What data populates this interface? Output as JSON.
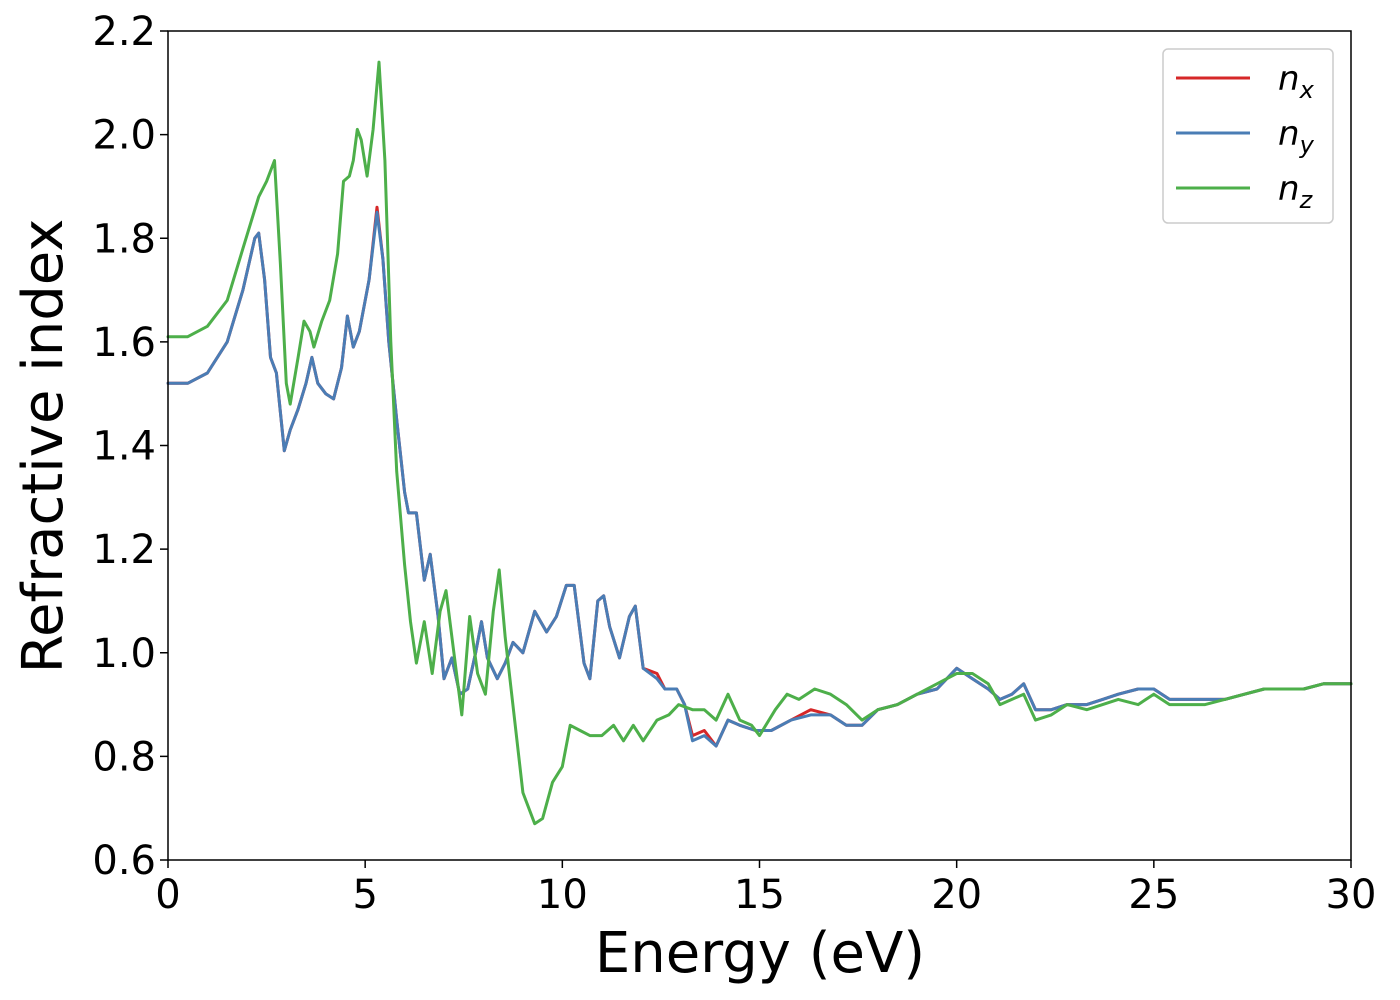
{
  "chart_data": {
    "type": "line",
    "title": "",
    "xlabel": "Energy (eV)",
    "ylabel": "Refractive index",
    "xlim": [
      0,
      30
    ],
    "ylim": [
      0.6,
      2.2
    ],
    "xticks": [
      0,
      5,
      10,
      15,
      20,
      25,
      30
    ],
    "yticks": [
      0.6,
      0.8,
      1.0,
      1.2,
      1.4,
      1.6,
      1.8,
      2.0,
      2.2
    ],
    "xtick_labels": [
      "0",
      "5",
      "10",
      "15",
      "20",
      "25",
      "30"
    ],
    "ytick_labels": [
      "0.6",
      "0.8",
      "1.0",
      "1.2",
      "1.4",
      "1.6",
      "1.8",
      "2.0",
      "2.2"
    ],
    "grid": false,
    "legend_position": "top-right",
    "series": [
      {
        "name": "n_x",
        "legend_base": "n",
        "legend_sub": "x",
        "color": "#d62728",
        "points": [
          [
            0,
            1.52
          ],
          [
            0.5,
            1.52
          ],
          [
            1.0,
            1.54
          ],
          [
            1.5,
            1.6
          ],
          [
            1.9,
            1.7
          ],
          [
            2.2,
            1.8
          ],
          [
            2.3,
            1.81
          ],
          [
            2.45,
            1.72
          ],
          [
            2.6,
            1.57
          ],
          [
            2.75,
            1.54
          ],
          [
            2.95,
            1.39
          ],
          [
            3.1,
            1.43
          ],
          [
            3.3,
            1.47
          ],
          [
            3.5,
            1.52
          ],
          [
            3.65,
            1.57
          ],
          [
            3.8,
            1.52
          ],
          [
            4.0,
            1.5
          ],
          [
            4.2,
            1.49
          ],
          [
            4.4,
            1.55
          ],
          [
            4.55,
            1.65
          ],
          [
            4.7,
            1.59
          ],
          [
            4.85,
            1.62
          ],
          [
            5.0,
            1.68
          ],
          [
            5.1,
            1.72
          ],
          [
            5.3,
            1.86
          ],
          [
            5.45,
            1.76
          ],
          [
            5.6,
            1.6
          ],
          [
            5.8,
            1.45
          ],
          [
            6.0,
            1.31
          ],
          [
            6.1,
            1.27
          ],
          [
            6.3,
            1.27
          ],
          [
            6.5,
            1.14
          ],
          [
            6.65,
            1.19
          ],
          [
            6.85,
            1.07
          ],
          [
            7.0,
            0.95
          ],
          [
            7.2,
            0.99
          ],
          [
            7.4,
            0.92
          ],
          [
            7.6,
            0.93
          ],
          [
            7.8,
            1.0
          ],
          [
            7.95,
            1.06
          ],
          [
            8.1,
            0.99
          ],
          [
            8.35,
            0.95
          ],
          [
            8.55,
            0.98
          ],
          [
            8.75,
            1.02
          ],
          [
            9.0,
            1.0
          ],
          [
            9.3,
            1.08
          ],
          [
            9.6,
            1.04
          ],
          [
            9.85,
            1.07
          ],
          [
            10.1,
            1.13
          ],
          [
            10.3,
            1.13
          ],
          [
            10.55,
            0.98
          ],
          [
            10.7,
            0.95
          ],
          [
            10.9,
            1.1
          ],
          [
            11.05,
            1.11
          ],
          [
            11.2,
            1.05
          ],
          [
            11.45,
            0.99
          ],
          [
            11.7,
            1.07
          ],
          [
            11.85,
            1.09
          ],
          [
            12.05,
            0.97
          ],
          [
            12.4,
            0.96
          ],
          [
            12.6,
            0.93
          ],
          [
            12.9,
            0.93
          ],
          [
            13.1,
            0.9
          ],
          [
            13.3,
            0.84
          ],
          [
            13.6,
            0.85
          ],
          [
            13.9,
            0.82
          ],
          [
            14.2,
            0.87
          ],
          [
            14.5,
            0.86
          ],
          [
            14.9,
            0.85
          ],
          [
            15.3,
            0.85
          ],
          [
            15.8,
            0.87
          ],
          [
            16.3,
            0.89
          ],
          [
            16.8,
            0.88
          ],
          [
            17.2,
            0.86
          ],
          [
            17.6,
            0.86
          ],
          [
            18.0,
            0.89
          ],
          [
            18.5,
            0.9
          ],
          [
            19.0,
            0.92
          ],
          [
            19.5,
            0.93
          ],
          [
            20.0,
            0.97
          ],
          [
            20.4,
            0.95
          ],
          [
            20.8,
            0.93
          ],
          [
            21.1,
            0.91
          ],
          [
            21.4,
            0.92
          ],
          [
            21.7,
            0.94
          ],
          [
            22.0,
            0.89
          ],
          [
            22.4,
            0.89
          ],
          [
            22.8,
            0.9
          ],
          [
            23.3,
            0.9
          ],
          [
            23.7,
            0.91
          ],
          [
            24.1,
            0.92
          ],
          [
            24.6,
            0.93
          ],
          [
            25.0,
            0.93
          ],
          [
            25.4,
            0.91
          ],
          [
            25.8,
            0.91
          ],
          [
            26.3,
            0.91
          ],
          [
            26.8,
            0.91
          ],
          [
            27.3,
            0.92
          ],
          [
            27.8,
            0.93
          ],
          [
            28.3,
            0.93
          ],
          [
            28.8,
            0.93
          ],
          [
            29.3,
            0.94
          ],
          [
            29.7,
            0.94
          ],
          [
            30.0,
            0.94
          ]
        ]
      },
      {
        "name": "n_y",
        "legend_base": "n",
        "legend_sub": "y",
        "color": "#4a7db5",
        "points": [
          [
            0,
            1.52
          ],
          [
            0.5,
            1.52
          ],
          [
            1.0,
            1.54
          ],
          [
            1.5,
            1.6
          ],
          [
            1.9,
            1.7
          ],
          [
            2.2,
            1.8
          ],
          [
            2.3,
            1.81
          ],
          [
            2.45,
            1.72
          ],
          [
            2.6,
            1.57
          ],
          [
            2.75,
            1.54
          ],
          [
            2.95,
            1.39
          ],
          [
            3.1,
            1.43
          ],
          [
            3.3,
            1.47
          ],
          [
            3.5,
            1.52
          ],
          [
            3.65,
            1.57
          ],
          [
            3.8,
            1.52
          ],
          [
            4.0,
            1.5
          ],
          [
            4.2,
            1.49
          ],
          [
            4.4,
            1.55
          ],
          [
            4.55,
            1.65
          ],
          [
            4.7,
            1.59
          ],
          [
            4.85,
            1.62
          ],
          [
            5.0,
            1.68
          ],
          [
            5.1,
            1.72
          ],
          [
            5.3,
            1.85
          ],
          [
            5.45,
            1.76
          ],
          [
            5.6,
            1.6
          ],
          [
            5.8,
            1.45
          ],
          [
            6.0,
            1.31
          ],
          [
            6.1,
            1.27
          ],
          [
            6.3,
            1.27
          ],
          [
            6.5,
            1.14
          ],
          [
            6.65,
            1.19
          ],
          [
            6.85,
            1.07
          ],
          [
            7.0,
            0.95
          ],
          [
            7.2,
            0.99
          ],
          [
            7.4,
            0.92
          ],
          [
            7.6,
            0.93
          ],
          [
            7.8,
            1.0
          ],
          [
            7.95,
            1.06
          ],
          [
            8.1,
            0.99
          ],
          [
            8.35,
            0.95
          ],
          [
            8.55,
            0.98
          ],
          [
            8.75,
            1.02
          ],
          [
            9.0,
            1.0
          ],
          [
            9.3,
            1.08
          ],
          [
            9.6,
            1.04
          ],
          [
            9.85,
            1.07
          ],
          [
            10.1,
            1.13
          ],
          [
            10.3,
            1.13
          ],
          [
            10.55,
            0.98
          ],
          [
            10.7,
            0.95
          ],
          [
            10.9,
            1.1
          ],
          [
            11.05,
            1.11
          ],
          [
            11.2,
            1.05
          ],
          [
            11.45,
            0.99
          ],
          [
            11.7,
            1.07
          ],
          [
            11.85,
            1.09
          ],
          [
            12.05,
            0.97
          ],
          [
            12.4,
            0.95
          ],
          [
            12.6,
            0.93
          ],
          [
            12.9,
            0.93
          ],
          [
            13.1,
            0.9
          ],
          [
            13.3,
            0.83
          ],
          [
            13.6,
            0.84
          ],
          [
            13.9,
            0.82
          ],
          [
            14.2,
            0.87
          ],
          [
            14.5,
            0.86
          ],
          [
            14.9,
            0.85
          ],
          [
            15.3,
            0.85
          ],
          [
            15.8,
            0.87
          ],
          [
            16.3,
            0.88
          ],
          [
            16.8,
            0.88
          ],
          [
            17.2,
            0.86
          ],
          [
            17.6,
            0.86
          ],
          [
            18.0,
            0.89
          ],
          [
            18.5,
            0.9
          ],
          [
            19.0,
            0.92
          ],
          [
            19.5,
            0.93
          ],
          [
            20.0,
            0.97
          ],
          [
            20.4,
            0.95
          ],
          [
            20.8,
            0.93
          ],
          [
            21.1,
            0.91
          ],
          [
            21.4,
            0.92
          ],
          [
            21.7,
            0.94
          ],
          [
            22.0,
            0.89
          ],
          [
            22.4,
            0.89
          ],
          [
            22.8,
            0.9
          ],
          [
            23.3,
            0.9
          ],
          [
            23.7,
            0.91
          ],
          [
            24.1,
            0.92
          ],
          [
            24.6,
            0.93
          ],
          [
            25.0,
            0.93
          ],
          [
            25.4,
            0.91
          ],
          [
            25.8,
            0.91
          ],
          [
            26.3,
            0.91
          ],
          [
            26.8,
            0.91
          ],
          [
            27.3,
            0.92
          ],
          [
            27.8,
            0.93
          ],
          [
            28.3,
            0.93
          ],
          [
            28.8,
            0.93
          ],
          [
            29.3,
            0.94
          ],
          [
            29.7,
            0.94
          ],
          [
            30.0,
            0.94
          ]
        ]
      },
      {
        "name": "n_z",
        "legend_base": "n",
        "legend_sub": "z",
        "color": "#4daf4a",
        "points": [
          [
            0,
            1.61
          ],
          [
            0.5,
            1.61
          ],
          [
            1.0,
            1.63
          ],
          [
            1.5,
            1.68
          ],
          [
            1.9,
            1.78
          ],
          [
            2.3,
            1.88
          ],
          [
            2.5,
            1.91
          ],
          [
            2.7,
            1.95
          ],
          [
            2.85,
            1.75
          ],
          [
            3.0,
            1.52
          ],
          [
            3.1,
            1.48
          ],
          [
            3.3,
            1.57
          ],
          [
            3.45,
            1.64
          ],
          [
            3.6,
            1.62
          ],
          [
            3.7,
            1.59
          ],
          [
            3.9,
            1.64
          ],
          [
            4.1,
            1.68
          ],
          [
            4.3,
            1.77
          ],
          [
            4.45,
            1.91
          ],
          [
            4.6,
            1.92
          ],
          [
            4.7,
            1.95
          ],
          [
            4.8,
            2.01
          ],
          [
            4.9,
            1.99
          ],
          [
            5.05,
            1.92
          ],
          [
            5.2,
            2.01
          ],
          [
            5.35,
            2.14
          ],
          [
            5.5,
            1.95
          ],
          [
            5.65,
            1.6
          ],
          [
            5.8,
            1.35
          ],
          [
            6.0,
            1.17
          ],
          [
            6.15,
            1.06
          ],
          [
            6.3,
            0.98
          ],
          [
            6.5,
            1.06
          ],
          [
            6.7,
            0.96
          ],
          [
            6.9,
            1.08
          ],
          [
            7.05,
            1.12
          ],
          [
            7.25,
            1.0
          ],
          [
            7.45,
            0.88
          ],
          [
            7.65,
            1.07
          ],
          [
            7.85,
            0.96
          ],
          [
            8.05,
            0.92
          ],
          [
            8.25,
            1.08
          ],
          [
            8.4,
            1.16
          ],
          [
            8.55,
            1.03
          ],
          [
            8.7,
            0.93
          ],
          [
            9.0,
            0.73
          ],
          [
            9.3,
            0.67
          ],
          [
            9.5,
            0.68
          ],
          [
            9.75,
            0.75
          ],
          [
            10.0,
            0.78
          ],
          [
            10.2,
            0.86
          ],
          [
            10.45,
            0.85
          ],
          [
            10.7,
            0.84
          ],
          [
            11.0,
            0.84
          ],
          [
            11.3,
            0.86
          ],
          [
            11.55,
            0.83
          ],
          [
            11.8,
            0.86
          ],
          [
            12.05,
            0.83
          ],
          [
            12.4,
            0.87
          ],
          [
            12.7,
            0.88
          ],
          [
            12.95,
            0.9
          ],
          [
            13.3,
            0.89
          ],
          [
            13.6,
            0.89
          ],
          [
            13.9,
            0.87
          ],
          [
            14.2,
            0.92
          ],
          [
            14.5,
            0.87
          ],
          [
            14.8,
            0.86
          ],
          [
            15.0,
            0.84
          ],
          [
            15.4,
            0.89
          ],
          [
            15.7,
            0.92
          ],
          [
            16.0,
            0.91
          ],
          [
            16.4,
            0.93
          ],
          [
            16.8,
            0.92
          ],
          [
            17.2,
            0.9
          ],
          [
            17.6,
            0.87
          ],
          [
            18.0,
            0.89
          ],
          [
            18.5,
            0.9
          ],
          [
            19.0,
            0.92
          ],
          [
            19.5,
            0.94
          ],
          [
            20.0,
            0.96
          ],
          [
            20.4,
            0.96
          ],
          [
            20.8,
            0.94
          ],
          [
            21.1,
            0.9
          ],
          [
            21.4,
            0.91
          ],
          [
            21.7,
            0.92
          ],
          [
            22.0,
            0.87
          ],
          [
            22.4,
            0.88
          ],
          [
            22.8,
            0.9
          ],
          [
            23.3,
            0.89
          ],
          [
            23.7,
            0.9
          ],
          [
            24.1,
            0.91
          ],
          [
            24.6,
            0.9
          ],
          [
            25.0,
            0.92
          ],
          [
            25.4,
            0.9
          ],
          [
            25.8,
            0.9
          ],
          [
            26.3,
            0.9
          ],
          [
            26.8,
            0.91
          ],
          [
            27.3,
            0.92
          ],
          [
            27.8,
            0.93
          ],
          [
            28.3,
            0.93
          ],
          [
            28.8,
            0.93
          ],
          [
            29.3,
            0.94
          ],
          [
            29.7,
            0.94
          ],
          [
            30.0,
            0.94
          ]
        ]
      }
    ]
  }
}
